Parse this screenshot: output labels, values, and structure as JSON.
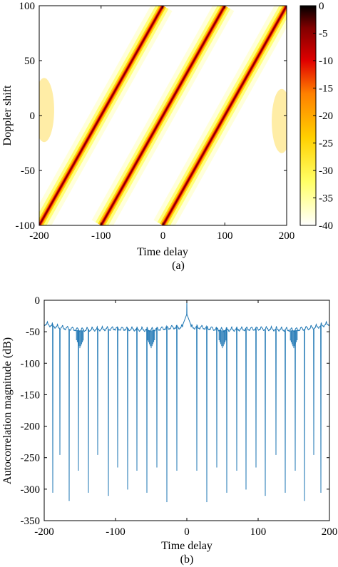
{
  "chart_data": [
    {
      "type": "heatmap",
      "caption": "(a)",
      "xlabel": "Time delay",
      "ylabel": "Doppler shift",
      "xlim": [
        -200,
        200
      ],
      "ylim": [
        -100,
        100
      ],
      "xticks": [
        -200,
        -100,
        0,
        100,
        200
      ],
      "yticks": [
        100,
        50,
        0,
        -50,
        -100
      ],
      "colorbar": {
        "range": [
          -40,
          0
        ],
        "ticks": [
          0,
          -5,
          -10,
          -15,
          -20,
          -25,
          -30,
          -35,
          -40
        ],
        "colors": [
          "#ffffff",
          "#ffff66",
          "#ffd000",
          "#ff8000",
          "#e00000",
          "#800000",
          "#000000"
        ]
      },
      "ridges": [
        {
          "from": [
            -200,
            -100
          ],
          "to": [
            0,
            100
          ]
        },
        {
          "from": [
            -100,
            -100
          ],
          "to": [
            100,
            100
          ]
        },
        {
          "from": [
            0,
            -100
          ],
          "to": [
            200,
            100
          ]
        }
      ],
      "grid": false
    },
    {
      "type": "line",
      "caption": "(b)",
      "xlabel": "Time delay",
      "ylabel": "Autocorrelation magnitude (dB)",
      "xlim": [
        -200,
        200
      ],
      "ylim": [
        -350,
        0
      ],
      "xticks": [
        -200,
        -100,
        0,
        100,
        200
      ],
      "yticks": [
        0,
        -50,
        -100,
        -150,
        -200,
        -250,
        -300,
        -350
      ],
      "line_color": "#1f77b4",
      "peak": {
        "x": 0,
        "y": 0
      },
      "envelope": [
        {
          "x": -200,
          "y": -32
        },
        {
          "x": -180,
          "y": -38
        },
        {
          "x": -150,
          "y": -42
        },
        {
          "x": -100,
          "y": -40
        },
        {
          "x": -50,
          "y": -42
        },
        {
          "x": -20,
          "y": -38
        },
        {
          "x": 20,
          "y": -38
        },
        {
          "x": 50,
          "y": -42
        },
        {
          "x": 100,
          "y": -40
        },
        {
          "x": 150,
          "y": -42
        },
        {
          "x": 180,
          "y": -38
        },
        {
          "x": 200,
          "y": -32
        }
      ],
      "nulls": [
        {
          "x": -188,
          "y": -305
        },
        {
          "x": -178,
          "y": -245
        },
        {
          "x": -165,
          "y": -318
        },
        {
          "x": -152,
          "y": -270
        },
        {
          "x": -138,
          "y": -305
        },
        {
          "x": -125,
          "y": -245
        },
        {
          "x": -110,
          "y": -310
        },
        {
          "x": -97,
          "y": -265
        },
        {
          "x": -83,
          "y": -300
        },
        {
          "x": -70,
          "y": -270
        },
        {
          "x": -56,
          "y": -305
        },
        {
          "x": -42,
          "y": -265
        },
        {
          "x": -28,
          "y": -320
        },
        {
          "x": -14,
          "y": -270
        },
        {
          "x": 14,
          "y": -270
        },
        {
          "x": 28,
          "y": -320
        },
        {
          "x": 42,
          "y": -265
        },
        {
          "x": 56,
          "y": -305
        },
        {
          "x": 70,
          "y": -270
        },
        {
          "x": 83,
          "y": -300
        },
        {
          "x": 97,
          "y": -265
        },
        {
          "x": 110,
          "y": -310
        },
        {
          "x": 125,
          "y": -245
        },
        {
          "x": 138,
          "y": -305
        },
        {
          "x": 152,
          "y": -270
        },
        {
          "x": 165,
          "y": -318
        },
        {
          "x": 178,
          "y": -245
        },
        {
          "x": 188,
          "y": -305
        }
      ],
      "grid": false
    }
  ]
}
